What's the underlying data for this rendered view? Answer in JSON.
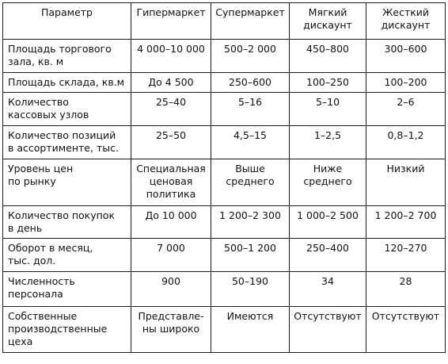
{
  "table": {
    "headers": [
      "Параметр",
      "Гипермаркет",
      "Супермаркет",
      "Мягкий\nдискаунт",
      "Жесткий\nдискаунт"
    ],
    "rows": [
      [
        "Площадь торгового\nзала, кв. м",
        "4 000–10 000",
        "500–2 000",
        "450–800",
        "300–600"
      ],
      [
        "Площадь склада, кв.м",
        "До 4 500",
        "250–600",
        "100–250",
        "100–200"
      ],
      [
        "Количество\nкассовых узлов",
        "25–40",
        "5–16",
        "5–10",
        "2–6"
      ],
      [
        "Количество позиций\nв ассортименте, тыс.",
        "25–50",
        "4,5–15",
        "1–2,5",
        "0,8–1,2"
      ],
      [
        "Уровень цен\nпо рынку",
        "Специальная\nценовая\nполитика",
        "Выше\nсреднего",
        "Ниже\nсреднего",
        "Низкий"
      ],
      [
        "Количество покупок\nв день",
        "До 10 000",
        "1 200–2 300",
        "1 000–2 500",
        "1 200–2 700"
      ],
      [
        "Оборот в месяц,\nтыс. дол.",
        "7 000",
        "500–1 200",
        "250–400",
        "120–270"
      ],
      [
        "Численность\nперсонала",
        "900",
        "50–190",
        "34",
        "28"
      ],
      [
        "Собственные\nпроизводственные\nцеха",
        "Представле-\nны широко",
        "Имеются",
        "Отсутствуют",
        "Отсутствуют"
      ]
    ]
  }
}
